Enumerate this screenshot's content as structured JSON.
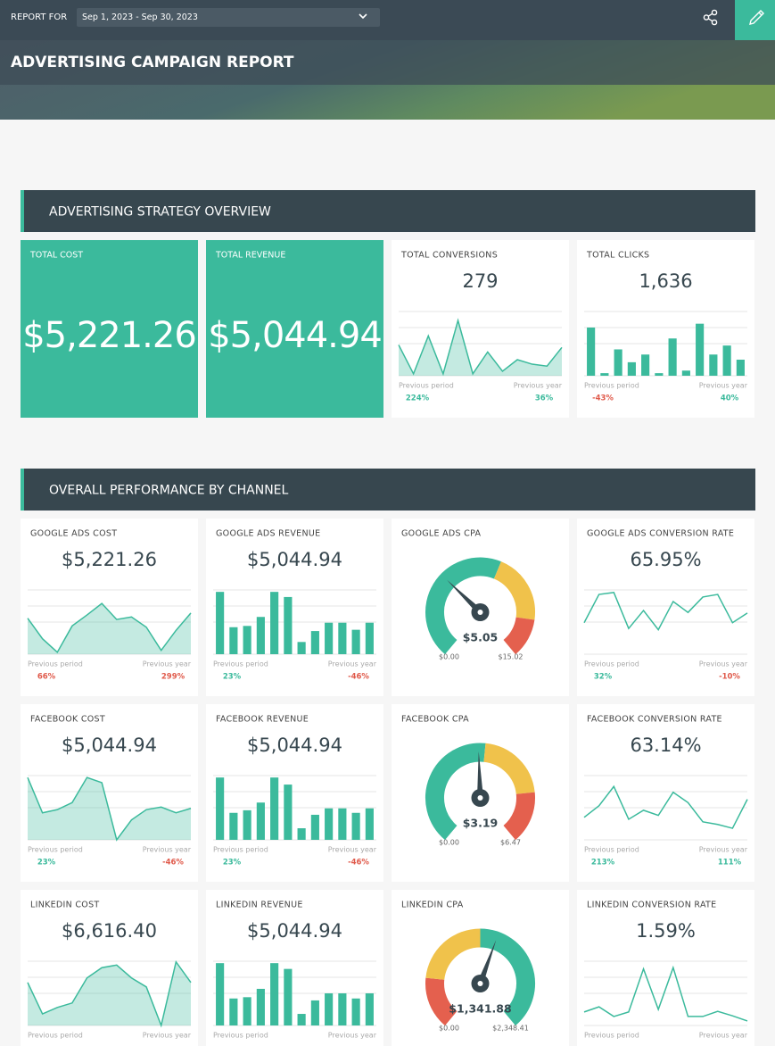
{
  "header": {
    "report_for": "REPORT FOR",
    "date_range": "Sep 1, 2023 - Sep 30, 2023",
    "title": "ADVERTISING CAMPAIGN REPORT"
  },
  "sections": [
    {
      "title": "ADVERTISING STRATEGY OVERVIEW",
      "widgets": [
        {
          "kind": "big",
          "title": "TOTAL COST",
          "value": "$5,221.26"
        },
        {
          "kind": "big",
          "title": "TOTAL REVENUE",
          "value": "$5,044.94"
        },
        {
          "kind": "spark",
          "title": "TOTAL CONVERSIONS",
          "value": "279",
          "chart": {
            "type": "area",
            "color": "#3bba9c",
            "values": [
              48,
              3,
              62,
              3,
              86,
              3,
              37,
              7,
              25,
              18,
              15,
              44
            ]
          },
          "comparisons": [
            {
              "label": "Previous period",
              "value": "224%",
              "color": "#3bba9c"
            },
            {
              "label": "Previous year",
              "value": "36%",
              "color": "#3bba9c"
            }
          ]
        },
        {
          "kind": "spark",
          "title": "TOTAL CLICKS",
          "value": "1,636",
          "chart": {
            "type": "bar",
            "color": "#3bba9c",
            "values": [
              75,
              4,
              41,
              21,
              33,
              4,
              58,
              8,
              81,
              33,
              47,
              25
            ]
          },
          "comparisons": [
            {
              "label": "Previous period",
              "value": "-43%",
              "color": "#e05a4b"
            },
            {
              "label": "Previous year",
              "value": "40%",
              "color": "#3bba9c"
            }
          ]
        }
      ]
    },
    {
      "title": "OVERALL PERFORMANCE BY CHANNEL",
      "widgets": [
        {
          "kind": "spark",
          "title": "GOOGLE ADS COST",
          "value": "$5,221.26",
          "chart": {
            "type": "area",
            "color": "#3bba9c",
            "values": [
              56,
              24,
              3,
              44,
              61,
              79,
              54,
              58,
              42,
              6,
              37,
              64
            ]
          },
          "comparisons": [
            {
              "label": "Previous period",
              "value": "66%",
              "color": "#e05a4b"
            },
            {
              "label": "Previous year",
              "value": "299%",
              "color": "#e05a4b"
            }
          ]
        },
        {
          "kind": "spark",
          "title": "GOOGLE ADS REVENUE",
          "value": "$5,044.94",
          "chart": {
            "type": "bar",
            "color": "#3bba9c",
            "values": [
              97,
              42,
              44,
              58,
              97,
              89,
              19,
              36,
              49,
              49,
              38,
              49
            ]
          },
          "comparisons": [
            {
              "label": "Previous period",
              "value": "23%",
              "color": "#3bba9c"
            },
            {
              "label": "Previous year",
              "value": "-46%",
              "color": "#e05a4b"
            }
          ]
        },
        {
          "kind": "gauge",
          "title": "GOOGLE ADS CPA",
          "value_label": "$5.05",
          "value": 5.05,
          "min_label": "$0.00",
          "min": 0,
          "max_label": "$15.02",
          "max": 15.02,
          "bands": [
            {
              "color": "#3bba9c",
              "to": 0.58
            },
            {
              "color": "#f0c24b",
              "to": 0.85
            },
            {
              "color": "#e4604e",
              "to": 1
            }
          ]
        },
        {
          "kind": "spark",
          "title": "GOOGLE ADS CONVERSION RATE",
          "value": "65.95%",
          "chart": {
            "type": "line",
            "color": "#3bba9c",
            "values": [
              49,
              93,
              96,
              40,
              68,
              38,
              82,
              65,
              89,
              93,
              49,
              64
            ]
          },
          "comparisons": [
            {
              "label": "Previous period",
              "value": "32%",
              "color": "#3bba9c"
            },
            {
              "label": "Previous year",
              "value": "-10%",
              "color": "#e05a4b"
            }
          ]
        },
        {
          "kind": "spark",
          "title": "FACEBOOK COST",
          "value": "$5,044.94",
          "chart": {
            "type": "area",
            "color": "#3bba9c",
            "values": [
              97,
              42,
              47,
              58,
              97,
              89,
              0,
              31,
              47,
              51,
              42,
              49
            ]
          },
          "comparisons": [
            {
              "label": "Previous period",
              "value": "23%",
              "color": "#3bba9c"
            },
            {
              "label": "Previous year",
              "value": "-46%",
              "color": "#e05a4b"
            }
          ]
        },
        {
          "kind": "spark",
          "title": "FACEBOOK REVENUE",
          "value": "$5,044.94",
          "chart": {
            "type": "bar",
            "color": "#3bba9c",
            "values": [
              97,
              42,
              46,
              58,
              97,
              86,
              18,
              39,
              49,
              49,
              42,
              49
            ]
          },
          "comparisons": [
            {
              "label": "Previous period",
              "value": "23%",
              "color": "#3bba9c"
            },
            {
              "label": "Previous year",
              "value": "-46%",
              "color": "#e05a4b"
            }
          ]
        },
        {
          "kind": "gauge",
          "title": "FACEBOOK CPA",
          "value_label": "$3.19",
          "value": 3.19,
          "min_label": "$0.00",
          "min": 0,
          "max_label": "$6.47",
          "max": 6.47,
          "bands": [
            {
              "color": "#3bba9c",
              "to": 0.52
            },
            {
              "color": "#f0c24b",
              "to": 0.8
            },
            {
              "color": "#e4604e",
              "to": 1
            }
          ]
        },
        {
          "kind": "spark",
          "title": "FACEBOOK CONVERSION RATE",
          "value": "63.14%",
          "chart": {
            "type": "line",
            "color": "#3bba9c",
            "values": [
              35,
              53,
              83,
              32,
              46,
              38,
              74,
              58,
              28,
              24,
              18,
              63
            ]
          },
          "comparisons": [
            {
              "label": "Previous period",
              "value": "213%",
              "color": "#3bba9c"
            },
            {
              "label": "Previous year",
              "value": "111%",
              "color": "#3bba9c"
            }
          ]
        },
        {
          "kind": "spark",
          "title": "LINKEDIN COST",
          "value": "$6,616.40",
          "chart": {
            "type": "area",
            "color": "#3bba9c",
            "values": [
              67,
              18,
              28,
              35,
              74,
              90,
              94,
              74,
              60,
              0,
              99,
              67
            ]
          },
          "comparisons": [
            {
              "label": "Previous period"
            },
            {
              "label": "Previous year"
            }
          ]
        },
        {
          "kind": "spark",
          "title": "LINKEDIN REVENUE",
          "value": "$5,044.94",
          "chart": {
            "type": "bar",
            "color": "#3bba9c",
            "values": [
              97,
              42,
              44,
              57,
              97,
              88,
              18,
              39,
              50,
              50,
              42,
              50
            ]
          },
          "comparisons": [
            {
              "label": "Previous period"
            },
            {
              "label": "Previous year"
            }
          ]
        },
        {
          "kind": "gauge",
          "title": "LINKEDIN CPA",
          "value_label": "$1,341.88",
          "value": 1341.88,
          "min_label": "$0.00",
          "min": 0,
          "max_label": "$2,348.41",
          "max": 2348.41,
          "bands": [
            {
              "color": "#e4604e",
              "to": 0.2
            },
            {
              "color": "#f0c24b",
              "to": 0.5
            },
            {
              "color": "#3bba9c",
              "to": 1
            }
          ]
        },
        {
          "kind": "spark",
          "title": "LINKEDIN CONVERSION RATE",
          "value": "1.59%",
          "chart": {
            "type": "line",
            "color": "#3bba9c",
            "values": [
              21,
              29,
              14,
              21,
              88,
              25,
              90,
              14,
              14,
              22,
              15,
              7
            ]
          },
          "comparisons": [
            {
              "label": "Previous period"
            },
            {
              "label": "Previous year"
            }
          ]
        }
      ]
    }
  ]
}
